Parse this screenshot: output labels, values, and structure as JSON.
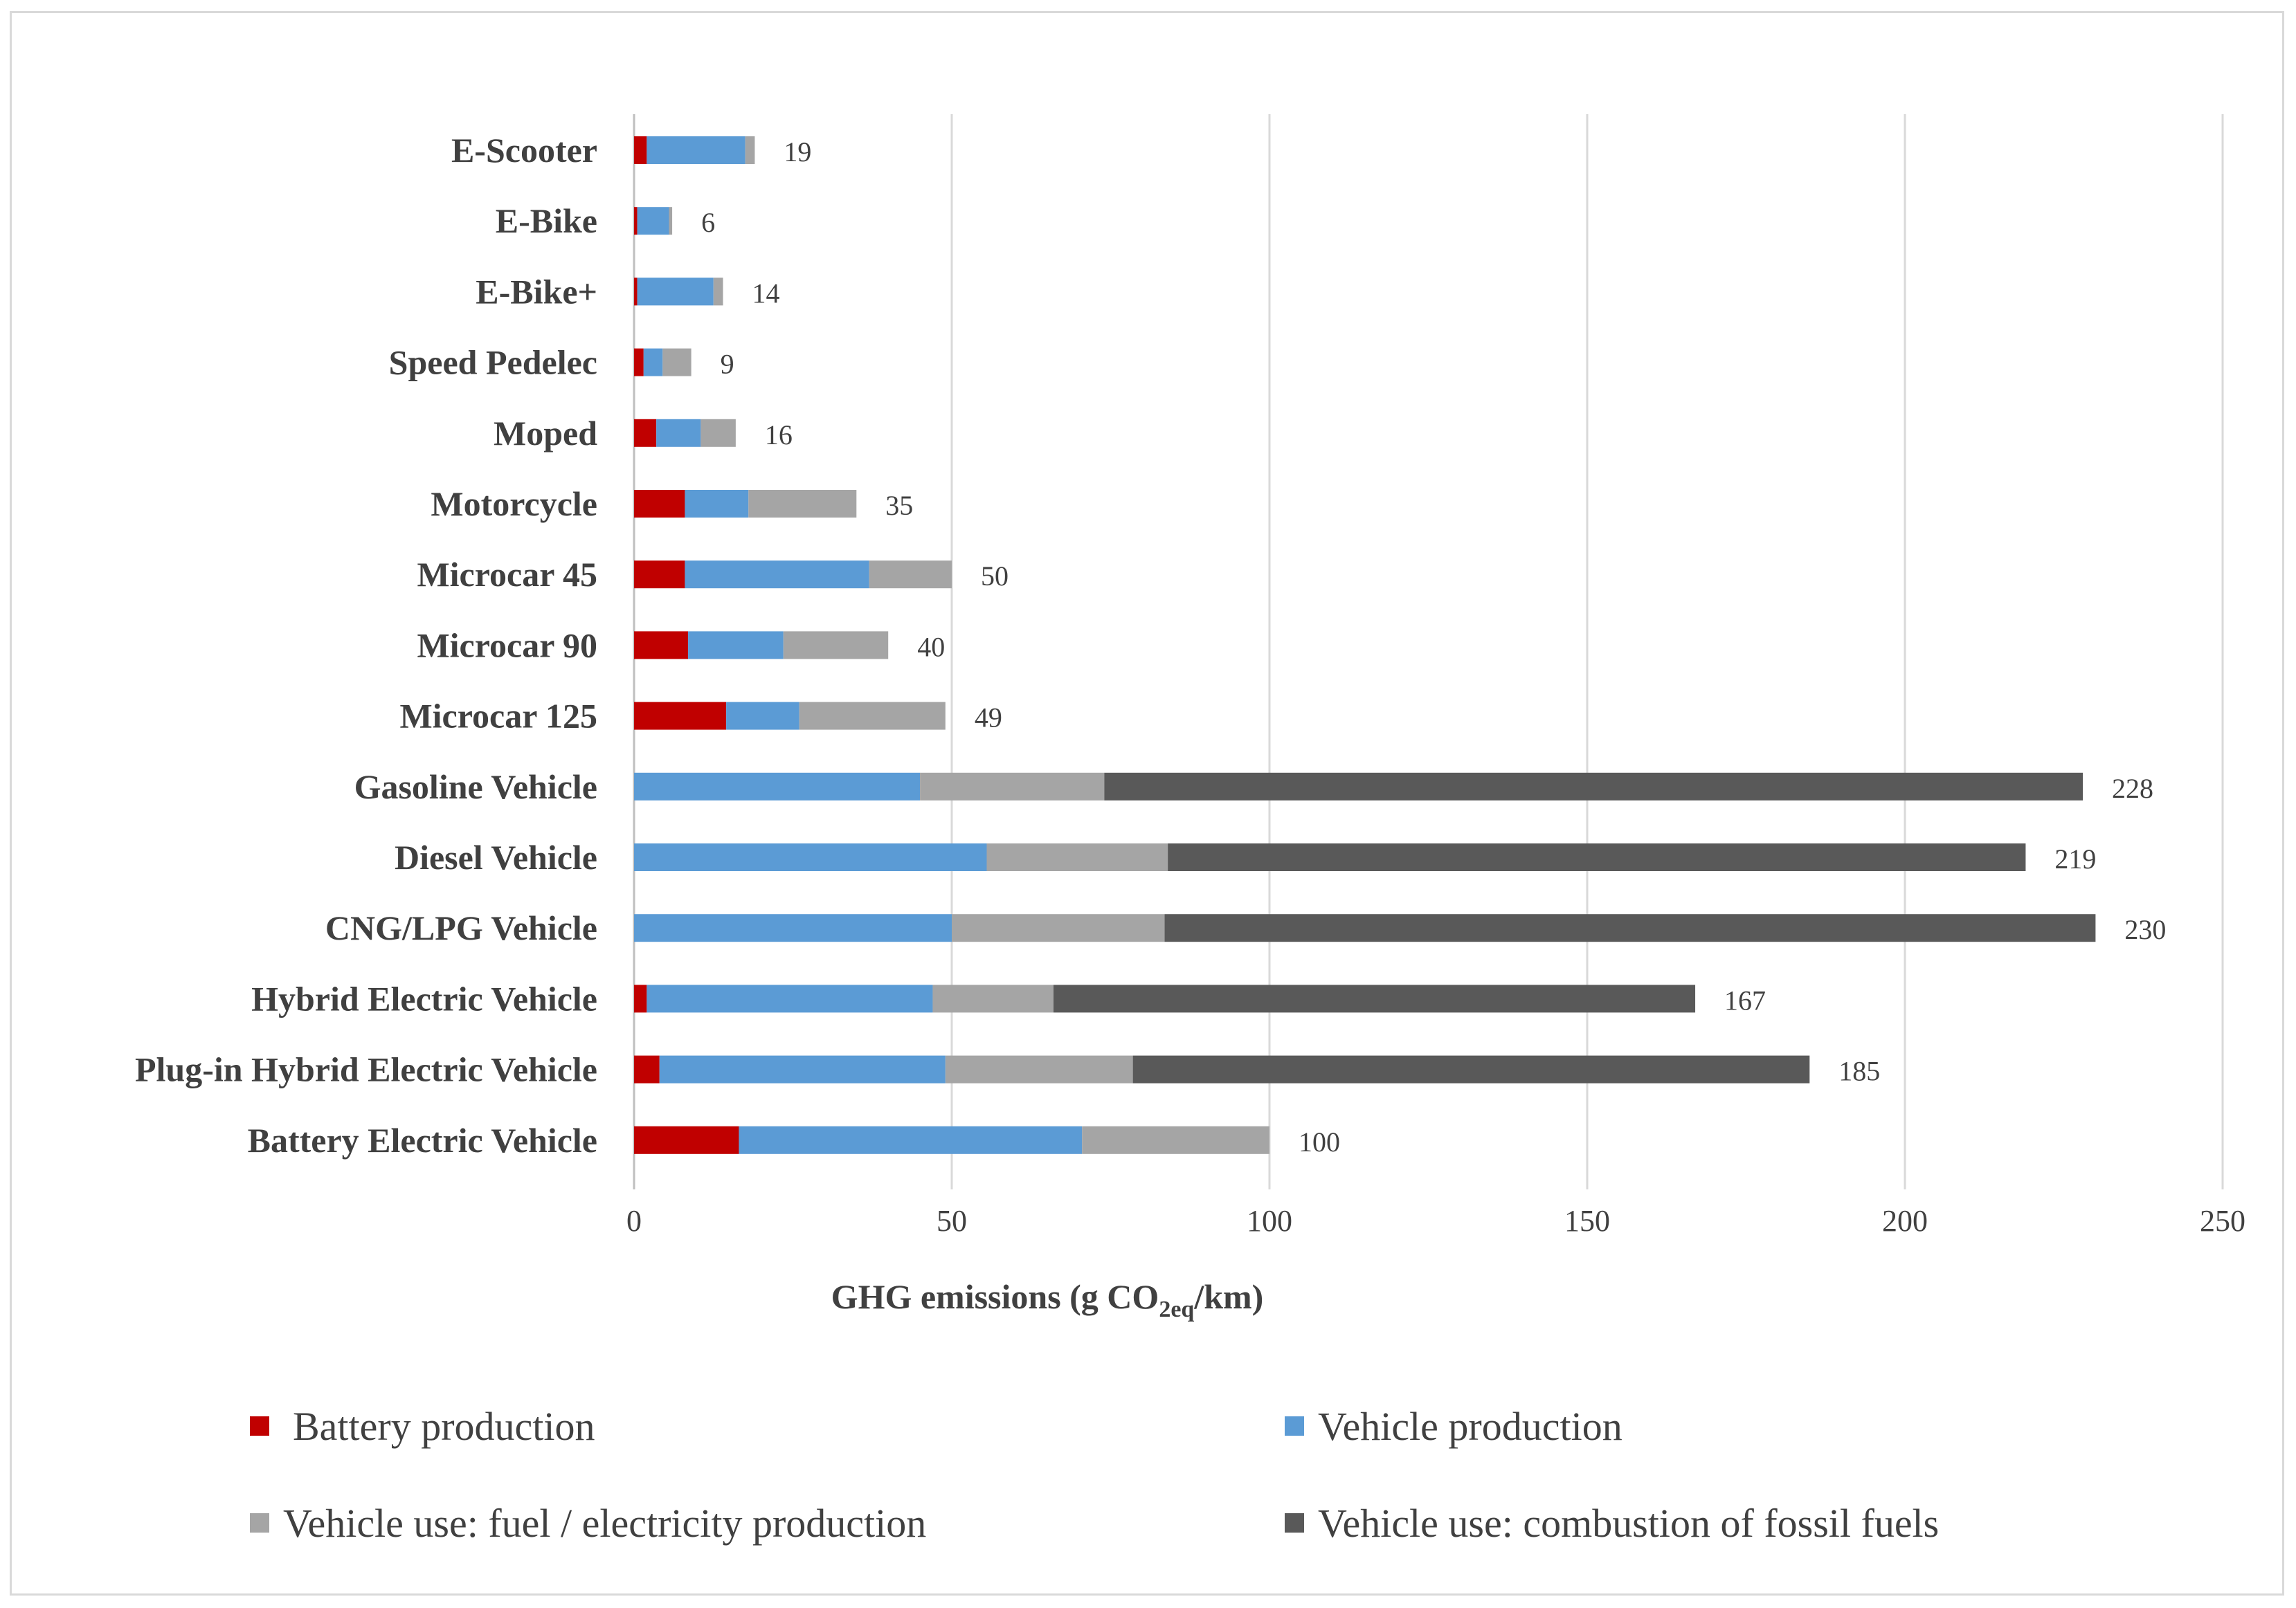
{
  "chart_data": {
    "type": "bar",
    "orientation": "horizontal",
    "stacked": true,
    "categories": [
      "E-Scooter",
      "E-Bike",
      "E-Bike+",
      "Speed Pedelec",
      "Moped",
      "Motorcycle",
      "Microcar 45",
      "Microcar 90",
      "Microcar 125",
      "Gasoline Vehicle",
      "Diesel Vehicle",
      "CNG/LPG Vehicle",
      "Hybrid Electric Vehicle",
      "Plug-in Hybrid Electric Vehicle",
      "Battery Electric Vehicle"
    ],
    "series": [
      {
        "name": "Battery production",
        "color": "#c00000",
        "values": [
          2,
          0.5,
          0.5,
          1.5,
          3.5,
          8,
          8,
          8.5,
          14.5,
          0,
          0,
          0,
          2,
          4,
          16.5
        ]
      },
      {
        "name": "Vehicle production",
        "color": "#5b9bd5",
        "values": [
          15.5,
          5,
          12,
          3,
          7,
          10,
          29,
          15,
          11.5,
          45,
          55.5,
          50,
          45,
          45,
          54
        ]
      },
      {
        "name": "Vehicle use: fuel / electricity production",
        "color": "#a5a5a5",
        "values": [
          1.5,
          0.5,
          1.5,
          4.5,
          5.5,
          17,
          13,
          16.5,
          23,
          29,
          28.5,
          33.5,
          19,
          29.5,
          29.5
        ]
      },
      {
        "name": "Vehicle use: combustion of fossil fuels",
        "color": "#595959",
        "values": [
          0,
          0,
          0,
          0,
          0,
          0,
          0,
          0,
          0,
          154,
          135,
          146.5,
          101,
          106.5,
          0
        ]
      }
    ],
    "totals": [
      "19",
      "6",
      "14",
      "9",
      "16",
      "35",
      "50",
      "40",
      "49",
      "228",
      "219",
      "230",
      "167",
      "185",
      "100"
    ],
    "xlim": [
      0,
      250
    ],
    "xticks": [
      "0",
      "50",
      "100",
      "150",
      "200",
      "250"
    ],
    "xlabel": {
      "main": "GHG emissions (g CO",
      "subscript": "2eq",
      "suffix": "/km)"
    },
    "grid": "vertical",
    "legend_position": "bottom"
  }
}
